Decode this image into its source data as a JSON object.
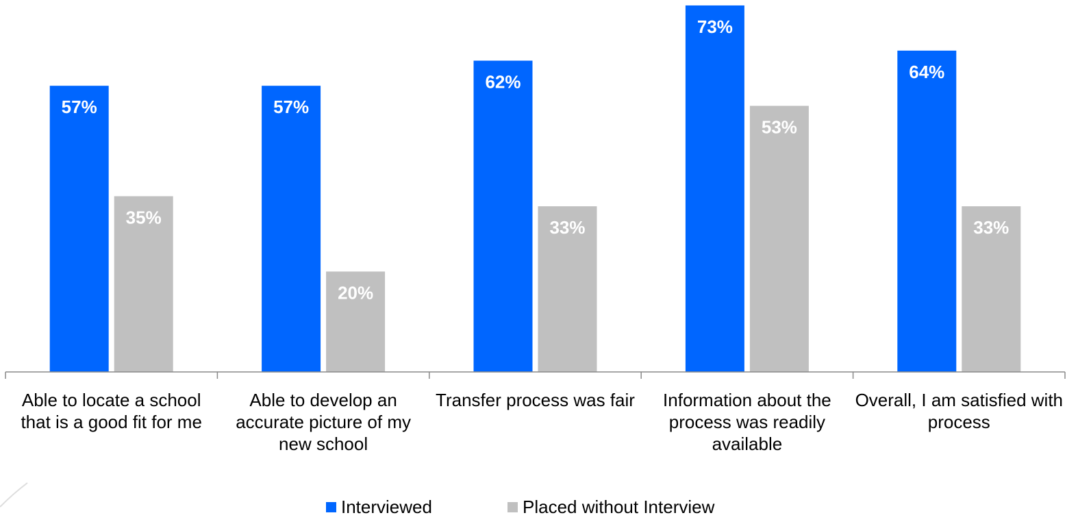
{
  "chart_data": {
    "type": "bar",
    "categories": [
      "Able to locate a school that is a good fit for me",
      "Able to develop an accurate picture of my new school",
      "Transfer process was fair",
      "Information about the process was readily available",
      "Overall, I am satisfied with process"
    ],
    "series": [
      {
        "name": "Interviewed",
        "color": "#0066ff",
        "values": [
          57,
          57,
          62,
          73,
          64
        ],
        "value_labels": [
          "57%",
          "57%",
          "62%",
          "73%",
          "64%"
        ]
      },
      {
        "name": "Placed without Interview",
        "color": "#c0c0c0",
        "values": [
          35,
          20,
          33,
          53,
          33
        ],
        "value_labels": [
          "35%",
          "20%",
          "33%",
          "53%",
          "33%"
        ]
      }
    ],
    "ylim": [
      0,
      74
    ],
    "legend": "bottom"
  }
}
